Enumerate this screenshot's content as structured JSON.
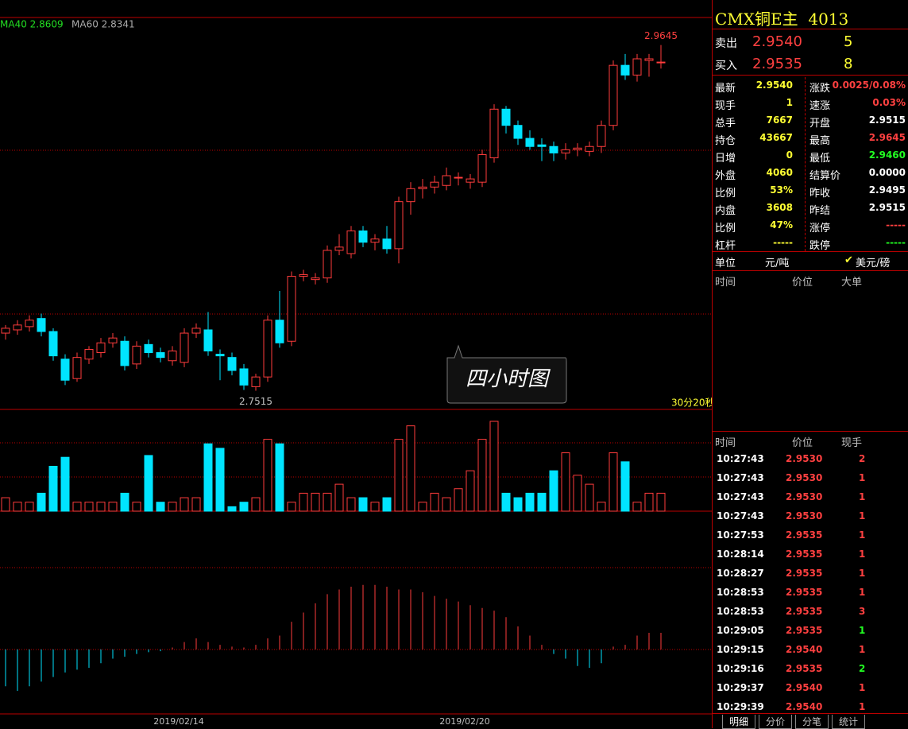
{
  "chart_data": {
    "type": "candlestick",
    "categories": [
      null,
      null,
      null,
      null,
      null,
      null,
      null,
      null,
      null,
      null,
      null,
      null,
      null,
      null,
      "2019/02/14",
      null,
      null,
      null,
      null,
      null,
      null,
      null,
      null,
      null,
      null,
      null,
      null,
      null,
      null,
      null,
      null,
      null,
      null,
      null,
      null,
      null,
      null,
      null,
      "2019/02/20",
      null,
      null,
      null,
      null,
      null,
      null,
      null,
      null,
      null,
      null,
      null,
      null,
      null,
      null,
      null,
      null,
      null
    ],
    "ohlc": [
      [
        2.787,
        2.792,
        2.783,
        2.79
      ],
      [
        2.789,
        2.795,
        2.786,
        2.792
      ],
      [
        2.791,
        2.798,
        2.788,
        2.795
      ],
      [
        2.796,
        2.799,
        2.785,
        2.788
      ],
      [
        2.788,
        2.79,
        2.77,
        2.773
      ],
      [
        2.771,
        2.774,
        2.755,
        2.758
      ],
      [
        2.759,
        2.775,
        2.757,
        2.772
      ],
      [
        2.771,
        2.779,
        2.768,
        2.777
      ],
      [
        2.775,
        2.784,
        2.772,
        2.781
      ],
      [
        2.781,
        2.787,
        2.778,
        2.784
      ],
      [
        2.782,
        2.785,
        2.764,
        2.767
      ],
      [
        2.768,
        2.782,
        2.765,
        2.779
      ],
      [
        2.78,
        2.783,
        2.772,
        2.775
      ],
      [
        2.775,
        2.778,
        2.769,
        2.772
      ],
      [
        2.77,
        2.779,
        2.767,
        2.776
      ],
      [
        2.769,
        2.79,
        2.766,
        2.787
      ],
      [
        2.787,
        2.793,
        2.784,
        2.79
      ],
      [
        2.789,
        2.8,
        2.773,
        2.776
      ],
      [
        2.774,
        2.777,
        2.758,
        2.773
      ],
      [
        2.772,
        2.775,
        2.761,
        2.764
      ],
      [
        2.765,
        2.768,
        2.752,
        2.755
      ],
      [
        2.754,
        2.762,
        2.7515,
        2.76
      ],
      [
        2.76,
        2.798,
        2.757,
        2.795
      ],
      [
        2.795,
        2.813,
        2.778,
        2.781
      ],
      [
        2.782,
        2.825,
        2.779,
        2.822
      ],
      [
        2.822,
        2.826,
        2.819,
        2.823
      ],
      [
        2.82,
        2.824,
        2.817,
        2.821
      ],
      [
        2.821,
        2.841,
        2.818,
        2.838
      ],
      [
        2.838,
        2.848,
        2.835,
        2.84
      ],
      [
        2.836,
        2.853,
        2.833,
        2.85
      ],
      [
        2.85,
        2.853,
        2.84,
        2.843
      ],
      [
        2.843,
        2.848,
        2.838,
        2.845
      ],
      [
        2.845,
        2.853,
        2.836,
        2.839
      ],
      [
        2.839,
        2.871,
        2.83,
        2.868
      ],
      [
        2.868,
        2.88,
        2.86,
        2.876
      ],
      [
        2.876,
        2.882,
        2.87,
        2.877
      ],
      [
        2.877,
        2.884,
        2.873,
        2.88
      ],
      [
        2.878,
        2.889,
        2.875,
        2.884
      ],
      [
        2.883,
        2.886,
        2.878,
        2.883
      ],
      [
        2.88,
        2.885,
        2.876,
        2.882
      ],
      [
        2.88,
        2.9,
        2.877,
        2.897
      ],
      [
        2.895,
        2.928,
        2.892,
        2.925
      ],
      [
        2.925,
        2.927,
        2.91,
        2.915
      ],
      [
        2.915,
        2.918,
        2.903,
        2.907
      ],
      [
        2.907,
        2.912,
        2.9,
        2.902
      ],
      [
        2.903,
        2.907,
        2.893,
        2.902
      ],
      [
        2.902,
        2.905,
        2.893,
        2.898
      ],
      [
        2.898,
        2.904,
        2.894,
        2.9
      ],
      [
        2.9,
        2.904,
        2.896,
        2.901
      ],
      [
        2.899,
        2.905,
        2.896,
        2.902
      ],
      [
        2.902,
        2.918,
        2.898,
        2.915
      ],
      [
        2.915,
        2.955,
        2.912,
        2.952
      ],
      [
        2.952,
        2.959,
        2.943,
        2.946
      ],
      [
        2.946,
        2.959,
        2.942,
        2.956
      ],
      [
        2.955,
        2.959,
        2.945,
        2.956
      ],
      [
        2.954,
        2.9645,
        2.95,
        2.954
      ]
    ],
    "ylim": [
      2.74,
      2.98
    ],
    "volume": [
      15,
      10,
      10,
      20,
      50,
      60,
      10,
      10,
      10,
      10,
      20,
      10,
      62,
      10,
      10,
      15,
      15,
      75,
      70,
      5,
      10,
      15,
      80,
      75,
      10,
      20,
      20,
      20,
      30,
      15,
      15,
      10,
      15,
      80,
      95,
      10,
      20,
      15,
      25,
      45,
      80,
      100,
      20,
      15,
      20,
      20,
      45,
      65,
      40,
      30,
      10,
      65,
      55,
      10,
      20,
      20
    ],
    "volume_ylim": [
      0,
      100
    ],
    "macd": [
      -40,
      -45,
      -40,
      -35,
      -30,
      -25,
      -22,
      -20,
      -15,
      -10,
      -8,
      -5,
      -3,
      -2,
      2,
      8,
      12,
      8,
      5,
      3,
      2,
      5,
      12,
      15,
      30,
      40,
      50,
      60,
      65,
      68,
      70,
      70,
      68,
      65,
      65,
      62,
      58,
      55,
      52,
      48,
      45,
      42,
      35,
      25,
      15,
      5,
      -5,
      -10,
      -18,
      -20,
      -15,
      3,
      5,
      15,
      18,
      18
    ],
    "macd_ylim": [
      -70,
      150
    ],
    "up_color": "#ff3c3c",
    "down_color": "#00e4ff",
    "ma_legend": [
      "MA40 2.8609",
      "MA60 2.8341"
    ],
    "high_label": {
      "value": 2.9645,
      "label": "2.9645"
    },
    "low_label": {
      "value": 2.7515,
      "label": "2.7515"
    },
    "countdown": "30分20秒",
    "period_label": "四小时图"
  },
  "quote": {
    "name": "CMX铜E主",
    "code": "4013",
    "sell": {
      "label": "卖出",
      "price": "2.9540",
      "qty": "5"
    },
    "buy": {
      "label": "买入",
      "price": "2.9535",
      "qty": "8"
    },
    "stats": [
      [
        "最新",
        "2.9540",
        "涨跌",
        "0.0025/0.08%"
      ],
      [
        "现手",
        "1",
        "速涨",
        "0.03%"
      ],
      [
        "总手",
        "7667",
        "开盘",
        "2.9515"
      ],
      [
        "持仓",
        "43667",
        "最高",
        "2.9645"
      ],
      [
        "日增",
        "0",
        "最低",
        "2.9460"
      ],
      [
        "外盘",
        "4060",
        "结算价",
        "0.0000"
      ],
      [
        "比例",
        "53%",
        "昨收",
        "2.9495"
      ],
      [
        "内盘",
        "3608",
        "昨结",
        "2.9515"
      ],
      [
        "比例",
        "47%",
        "涨停",
        "-----"
      ],
      [
        "杠杆",
        "-----",
        "跌停",
        "-----"
      ]
    ],
    "unit": {
      "label": "单位",
      "option1": "元/吨",
      "option2": "美元/磅"
    },
    "big_orders_header": [
      "时间",
      "价位",
      "大单"
    ],
    "ticks_header": [
      "时间",
      "价位",
      "现手"
    ],
    "ticks": [
      [
        "10:27:43",
        "2.9530",
        "2"
      ],
      [
        "10:27:43",
        "2.9530",
        "1"
      ],
      [
        "10:27:43",
        "2.9530",
        "1"
      ],
      [
        "10:27:43",
        "2.9530",
        "1"
      ],
      [
        "10:27:53",
        "2.9535",
        "1"
      ],
      [
        "10:28:14",
        "2.9535",
        "1"
      ],
      [
        "10:28:27",
        "2.9535",
        "1"
      ],
      [
        "10:28:53",
        "2.9535",
        "1"
      ],
      [
        "10:28:53",
        "2.9535",
        "3"
      ],
      [
        "10:29:05",
        "2.9535",
        "1"
      ],
      [
        "10:29:15",
        "2.9540",
        "1"
      ],
      [
        "10:29:16",
        "2.9535",
        "2"
      ],
      [
        "10:29:37",
        "2.9540",
        "1"
      ],
      [
        "10:29:39",
        "2.9540",
        "1"
      ]
    ],
    "tabs": [
      "明细",
      "分价",
      "分笔",
      "统计"
    ]
  }
}
